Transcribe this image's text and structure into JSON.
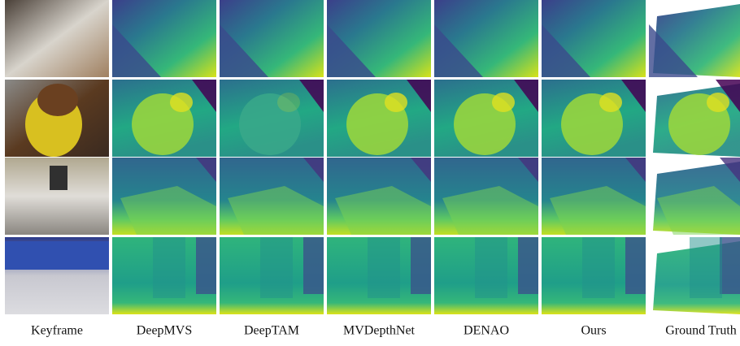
{
  "columns": [
    "Keyframe",
    "DeepMVS",
    "DeepTAM",
    "MVDepthNet",
    "DENAO",
    "Ours",
    "Ground Truth"
  ]
}
